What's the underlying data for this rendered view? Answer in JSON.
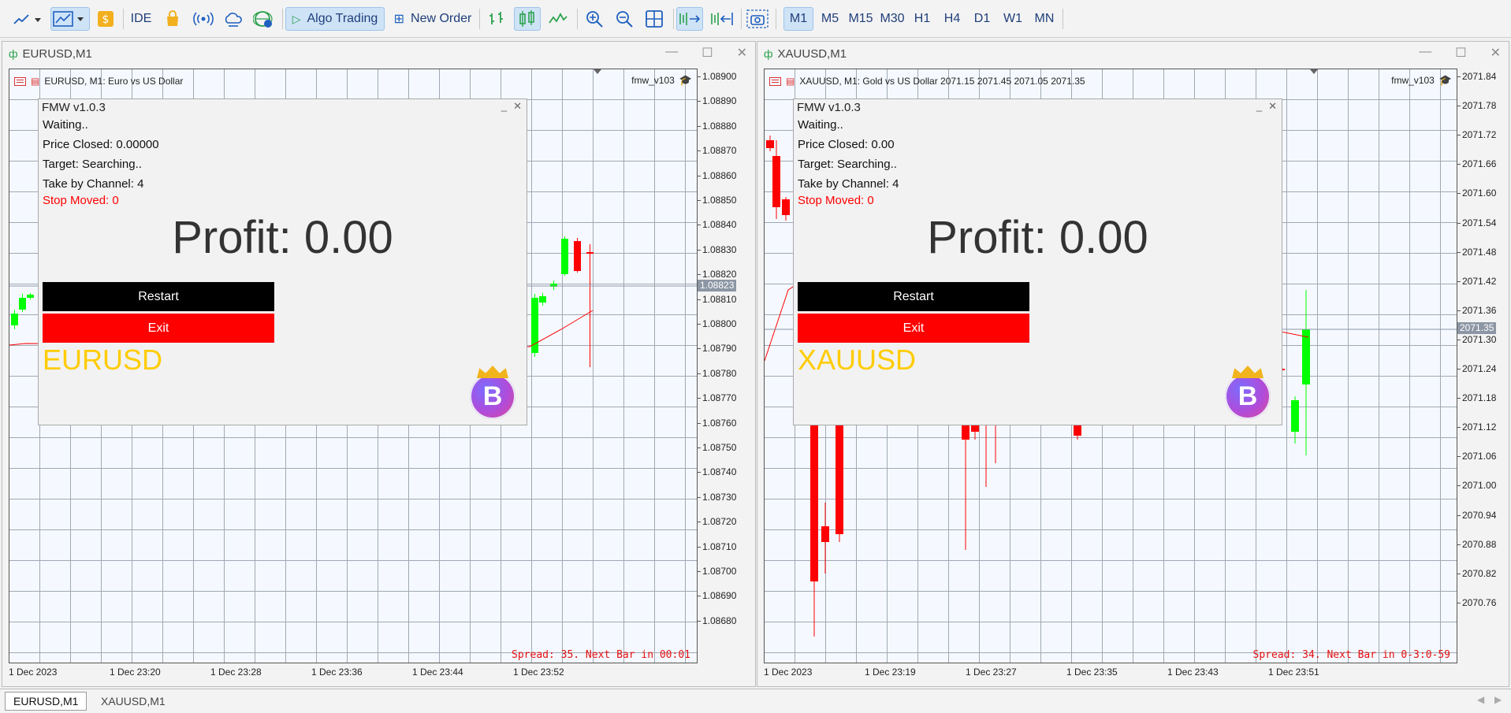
{
  "toolbar": {
    "ide_label": "IDE",
    "algo_trading_label": "Algo Trading",
    "new_order_label": "New Order",
    "timeframes": [
      "M1",
      "M5",
      "M15",
      "M30",
      "H1",
      "H4",
      "D1",
      "W1",
      "MN"
    ],
    "active_timeframe": "M1"
  },
  "windows": [
    {
      "title": "EURUSD,M1",
      "chart_header": "EURUSD, M1:  Euro vs US Dollar",
      "ea_name": "fmw_v103",
      "price_ticks": [
        "1.08900",
        "1.08890",
        "1.08880",
        "1.08870",
        "1.08860",
        "1.08850",
        "1.08840",
        "1.08830",
        "1.08820",
        "1.08810",
        "1.08800",
        "1.08790",
        "1.08780",
        "1.08770",
        "1.08760",
        "1.08750",
        "1.08740",
        "1.08730",
        "1.08720",
        "1.08710",
        "1.08700",
        "1.08690",
        "1.08680"
      ],
      "current_price": "1.08823",
      "time_ticks": [
        "1 Dec 2023",
        "1 Dec 23:20",
        "1 Dec 23:28",
        "1 Dec 23:36",
        "1 Dec 23:44",
        "1 Dec 23:52"
      ],
      "spread_text": "Spread: 35. Next Bar in 00:01",
      "panel": {
        "title": "FMW v1.0.3",
        "status": "Waiting..",
        "price_closed": "Price Closed: 0.00000",
        "target": "Target: Searching..",
        "take_by_channel": "Take by Channel: 4",
        "stop_moved": "Stop Moved: 0",
        "profit": "Profit: 0.00",
        "restart_label": "Restart",
        "exit_label": "Exit",
        "symbol": "EURUSD",
        "logo_letter": "B"
      }
    },
    {
      "title": "XAUUSD,M1",
      "chart_header": "XAUUSD, M1:  Gold vs US Dollar  2071.15 2071.45 2071.05 2071.35",
      "ea_name": "fmw_v103",
      "price_ticks": [
        "2071.84",
        "2071.78",
        "2071.72",
        "2071.66",
        "2071.60",
        "2071.54",
        "2071.48",
        "2071.42",
        "2071.36",
        "2071.30",
        "2071.24",
        "2071.18",
        "2071.12",
        "2071.06",
        "2071.00",
        "2070.94",
        "2070.88",
        "2070.82",
        "2070.76"
      ],
      "current_price": "2071.35",
      "time_ticks": [
        "1 Dec 2023",
        "1 Dec 23:19",
        "1 Dec 23:27",
        "1 Dec 23:35",
        "1 Dec 23:43",
        "1 Dec 23:51"
      ],
      "spread_text": "Spread: 34. Next Bar in 0-3:0-59",
      "panel": {
        "title": "FMW v1.0.3",
        "status": "Waiting..",
        "price_closed": "Price Closed: 0.00",
        "target": "Target: Searching..",
        "take_by_channel": "Take by Channel: 4",
        "stop_moved": "Stop Moved: 0",
        "profit": "Profit: 0.00",
        "restart_label": "Restart",
        "exit_label": "Exit",
        "symbol": "XAUUSD",
        "logo_letter": "B"
      }
    }
  ],
  "bottom_tabs": [
    "EURUSD,M1",
    "XAUUSD,M1"
  ],
  "colors": {
    "bull_candle": "#00ff00",
    "bear_candle": "#ff0000",
    "symbol_text": "#ffcc00",
    "stop_moved_text": "#ff0000",
    "spread_text": "#e51010"
  }
}
